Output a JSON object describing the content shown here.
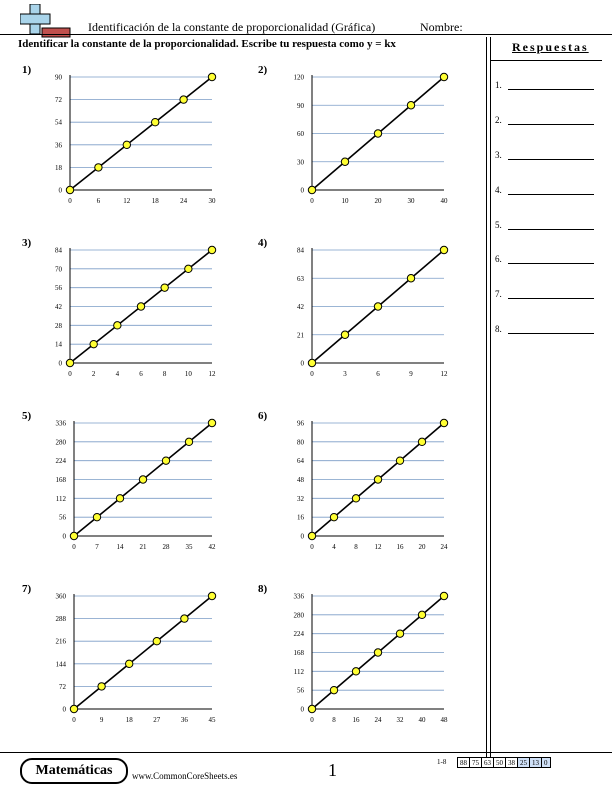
{
  "header": {
    "title": "Identificación de la constante de proporcionalidad (Gráfica)",
    "name_label": "Nombre:",
    "instructions": "Identificar la constante de la proporcionalidad. Escribe tu respuesta como y = kx"
  },
  "answers": {
    "title": "Respuestas",
    "items": [
      "1.",
      "2.",
      "3.",
      "4.",
      "5.",
      "6.",
      "7.",
      "8."
    ]
  },
  "problems": [
    {
      "label": "1)",
      "xticks": [
        "0",
        "6",
        "12",
        "18",
        "24",
        "30"
      ],
      "yticks": [
        "0",
        "18",
        "36",
        "54",
        "72",
        "90"
      ]
    },
    {
      "label": "2)",
      "xticks": [
        "0",
        "10",
        "20",
        "30",
        "40"
      ],
      "yticks": [
        "0",
        "30",
        "60",
        "90",
        "120"
      ]
    },
    {
      "label": "3)",
      "xticks": [
        "0",
        "2",
        "4",
        "6",
        "8",
        "10",
        "12"
      ],
      "yticks": [
        "0",
        "14",
        "28",
        "42",
        "56",
        "70",
        "84"
      ]
    },
    {
      "label": "4)",
      "xticks": [
        "0",
        "3",
        "6",
        "9",
        "12"
      ],
      "yticks": [
        "0",
        "21",
        "42",
        "63",
        "84"
      ]
    },
    {
      "label": "5)",
      "xticks": [
        "0",
        "7",
        "14",
        "21",
        "28",
        "35",
        "42"
      ],
      "yticks": [
        "0",
        "56",
        "112",
        "168",
        "224",
        "280",
        "336"
      ]
    },
    {
      "label": "6)",
      "xticks": [
        "0",
        "4",
        "8",
        "12",
        "16",
        "20",
        "24"
      ],
      "yticks": [
        "0",
        "16",
        "32",
        "48",
        "64",
        "80",
        "96"
      ]
    },
    {
      "label": "7)",
      "xticks": [
        "0",
        "9",
        "18",
        "27",
        "36",
        "45"
      ],
      "yticks": [
        "0",
        "72",
        "144",
        "216",
        "288",
        "360"
      ]
    },
    {
      "label": "8)",
      "xticks": [
        "0",
        "8",
        "16",
        "24",
        "32",
        "40",
        "48"
      ],
      "yticks": [
        "0",
        "56",
        "112",
        "168",
        "224",
        "280",
        "336"
      ]
    }
  ],
  "footer": {
    "brand": "Matemáticas",
    "site": "www.CommonCoreSheets.es",
    "page": "1",
    "score_label": "1-8",
    "scores": [
      "88",
      "75",
      "63",
      "50",
      "38",
      "25",
      "13",
      "0"
    ]
  },
  "colors": {
    "gridline": "#7a9cc6",
    "point_fill": "#ffff33",
    "score_highlight": "#cfe0f7",
    "logo_cross": "#a9d4ea",
    "logo_bar": "#c0504d"
  }
}
